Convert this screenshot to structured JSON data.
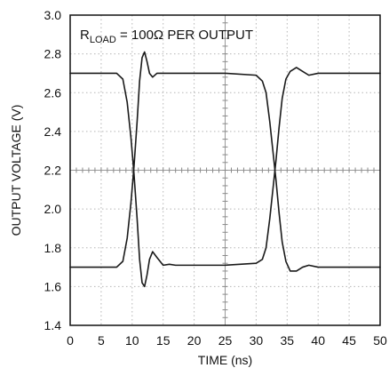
{
  "chart_data": {
    "type": "line",
    "xlabel": "TIME (ns)",
    "ylabel": "OUTPUT VOLTAGE (V)",
    "xlim": [
      0,
      50
    ],
    "ylim": [
      1.4,
      3.0
    ],
    "x_ticks": [
      "0",
      "5",
      "10",
      "15",
      "20",
      "25",
      "30",
      "35",
      "40",
      "45",
      "50"
    ],
    "y_ticks": [
      "1.4",
      "1.6",
      "1.8",
      "2.0",
      "2.2",
      "2.4",
      "2.6",
      "2.8",
      "3.0"
    ],
    "grid": true,
    "annotation": {
      "prefix": "R",
      "subscript": "LOAD",
      "suffix": " = 100Ω PER OUTPUT"
    },
    "series": [
      {
        "x": [
          0,
          7.5,
          8.5,
          9.2,
          9.8,
          10.3,
          10.8,
          11.2,
          11.6,
          12.0,
          12.4,
          12.8,
          13.3,
          14.0,
          15.0,
          16.0,
          17.0,
          20,
          25,
          30,
          31.0,
          31.6,
          32.2,
          32.7,
          33.2,
          33.7,
          34.2,
          34.8,
          35.5,
          36.5,
          37.5,
          38.5,
          40,
          45,
          50
        ],
        "y": [
          2.7,
          2.7,
          2.67,
          2.55,
          2.37,
          2.18,
          1.95,
          1.74,
          1.62,
          1.6,
          1.66,
          1.74,
          1.78,
          1.75,
          1.71,
          1.715,
          1.71,
          1.71,
          1.71,
          1.72,
          1.74,
          1.8,
          1.95,
          2.1,
          2.25,
          2.42,
          2.57,
          2.67,
          2.71,
          2.73,
          2.71,
          2.69,
          2.7,
          2.7,
          2.7
        ]
      },
      {
        "x": [
          0,
          7.5,
          8.5,
          9.2,
          9.8,
          10.3,
          10.8,
          11.2,
          11.6,
          12.0,
          12.4,
          12.8,
          13.3,
          14.0,
          15.0,
          16.0,
          17.0,
          20,
          25,
          30,
          31.0,
          31.6,
          32.2,
          32.7,
          33.2,
          33.7,
          34.2,
          34.8,
          35.5,
          36.5,
          37.5,
          38.5,
          40,
          45,
          50
        ],
        "y": [
          1.7,
          1.7,
          1.73,
          1.85,
          2.03,
          2.22,
          2.45,
          2.66,
          2.78,
          2.81,
          2.76,
          2.7,
          2.68,
          2.7,
          2.7,
          2.7,
          2.7,
          2.7,
          2.7,
          2.69,
          2.66,
          2.6,
          2.45,
          2.3,
          2.15,
          1.98,
          1.83,
          1.73,
          1.68,
          1.68,
          1.7,
          1.71,
          1.7,
          1.7,
          1.7
        ]
      }
    ]
  }
}
